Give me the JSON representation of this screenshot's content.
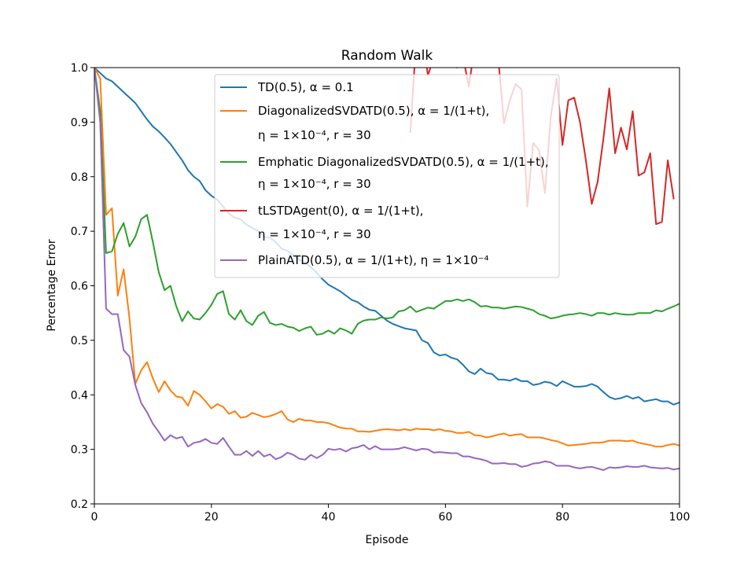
{
  "chart_data": {
    "type": "line",
    "title": "Random Walk",
    "xlabel": "Episode",
    "ylabel": "Percentage Error",
    "xlim": [
      0,
      100
    ],
    "ylim": [
      0.2,
      1.0
    ],
    "xticks": [
      "0",
      "20",
      "40",
      "60",
      "80",
      "100"
    ],
    "yticks": [
      "0.2",
      "0.3",
      "0.4",
      "0.5",
      "0.6",
      "0.7",
      "0.8",
      "0.9",
      "1.0"
    ],
    "legend_position": "top-center",
    "grid": false,
    "series": [
      {
        "name": "TD(0.5), α = 0.1",
        "legend_lines": [
          "TD(0.5), α = 0.1"
        ],
        "color": "#1f77b4",
        "values": [
          1.0,
          0.99,
          0.98,
          0.975,
          0.965,
          0.955,
          0.945,
          0.935,
          0.92,
          0.905,
          0.892,
          0.883,
          0.872,
          0.86,
          0.845,
          0.83,
          0.812,
          0.8,
          0.792,
          0.775,
          0.765,
          0.758,
          0.745,
          0.732,
          0.725,
          0.722,
          0.712,
          0.706,
          0.7,
          0.69,
          0.688,
          0.68,
          0.668,
          0.664,
          0.656,
          0.648,
          0.642,
          0.634,
          0.624,
          0.612,
          0.602,
          0.596,
          0.59,
          0.582,
          0.574,
          0.57,
          0.562,
          0.556,
          0.554,
          0.545,
          0.536,
          0.53,
          0.526,
          0.522,
          0.52,
          0.518,
          0.5,
          0.495,
          0.478,
          0.472,
          0.474,
          0.468,
          0.465,
          0.455,
          0.443,
          0.438,
          0.448,
          0.44,
          0.438,
          0.428,
          0.428,
          0.426,
          0.43,
          0.425,
          0.425,
          0.418,
          0.42,
          0.424,
          0.422,
          0.416,
          0.425,
          0.42,
          0.415,
          0.415,
          0.416,
          0.42,
          0.415,
          0.405,
          0.396,
          0.392,
          0.394,
          0.398,
          0.393,
          0.396,
          0.388,
          0.39,
          0.392,
          0.388,
          0.388,
          0.382,
          0.386
        ]
      },
      {
        "name": "DiagonalizedSVDATD(0.5), α = 1/(1+t), η = 1×10⁻⁴, r = 30",
        "legend_lines": [
          "DiagonalizedSVDATD(0.5), α = 1/(1+t),",
          "η = 1×10⁻⁴, r = 30"
        ],
        "color": "#ff7f0e",
        "values": [
          1.0,
          0.98,
          0.73,
          0.742,
          0.582,
          0.63,
          0.54,
          0.42,
          0.445,
          0.46,
          0.43,
          0.405,
          0.425,
          0.408,
          0.397,
          0.395,
          0.38,
          0.407,
          0.4,
          0.388,
          0.375,
          0.383,
          0.378,
          0.365,
          0.37,
          0.358,
          0.36,
          0.367,
          0.363,
          0.359,
          0.361,
          0.365,
          0.37,
          0.355,
          0.35,
          0.356,
          0.353,
          0.353,
          0.35,
          0.35,
          0.348,
          0.344,
          0.34,
          0.338,
          0.338,
          0.333,
          0.333,
          0.332,
          0.334,
          0.336,
          0.337,
          0.336,
          0.335,
          0.337,
          0.335,
          0.338,
          0.337,
          0.337,
          0.335,
          0.337,
          0.334,
          0.333,
          0.33,
          0.33,
          0.332,
          0.326,
          0.325,
          0.322,
          0.324,
          0.327,
          0.329,
          0.325,
          0.327,
          0.328,
          0.322,
          0.322,
          0.322,
          0.32,
          0.317,
          0.315,
          0.311,
          0.307,
          0.308,
          0.309,
          0.31,
          0.312,
          0.312,
          0.313,
          0.316,
          0.316,
          0.316,
          0.315,
          0.316,
          0.312,
          0.31,
          0.308,
          0.305,
          0.305,
          0.308,
          0.31,
          0.307
        ]
      },
      {
        "name": "Emphatic DiagonalizedSVDATD(0.5), α = 1/(1+t), η = 1×10⁻⁴, r = 30",
        "legend_lines": [
          "Emphatic DiagonalizedSVDATD(0.5), α = 1/(1+t),",
          "η = 1×10⁻⁴, r = 30"
        ],
        "color": "#2ca02c",
        "values": [
          1.0,
          0.92,
          0.66,
          0.663,
          0.695,
          0.715,
          0.672,
          0.69,
          0.722,
          0.73,
          0.68,
          0.625,
          0.592,
          0.6,
          0.562,
          0.535,
          0.553,
          0.54,
          0.538,
          0.55,
          0.565,
          0.585,
          0.59,
          0.548,
          0.538,
          0.555,
          0.535,
          0.528,
          0.545,
          0.552,
          0.532,
          0.528,
          0.53,
          0.525,
          0.523,
          0.517,
          0.522,
          0.525,
          0.51,
          0.512,
          0.518,
          0.512,
          0.522,
          0.518,
          0.512,
          0.53,
          0.536,
          0.538,
          0.538,
          0.542,
          0.54,
          0.542,
          0.553,
          0.555,
          0.562,
          0.552,
          0.556,
          0.56,
          0.558,
          0.565,
          0.572,
          0.572,
          0.575,
          0.572,
          0.575,
          0.57,
          0.562,
          0.563,
          0.56,
          0.56,
          0.558,
          0.56,
          0.562,
          0.561,
          0.558,
          0.555,
          0.548,
          0.545,
          0.54,
          0.542,
          0.545,
          0.547,
          0.548,
          0.55,
          0.548,
          0.545,
          0.55,
          0.55,
          0.547,
          0.55,
          0.548,
          0.547,
          0.547,
          0.55,
          0.55,
          0.55,
          0.555,
          0.553,
          0.558,
          0.562,
          0.567
        ]
      },
      {
        "name": "tLSTDAgent(0), α = 1/(1+t), η = 1×10⁻⁴, r = 30",
        "legend_lines": [
          "tLSTDAgent(0), α = 1/(1+t),",
          "η = 1×10⁻⁴, r = 30"
        ],
        "color": "#d62728",
        "values": [
          null,
          null,
          null,
          null,
          null,
          null,
          null,
          null,
          null,
          null,
          null,
          null,
          null,
          null,
          null,
          null,
          null,
          null,
          null,
          null,
          null,
          null,
          null,
          null,
          null,
          null,
          null,
          null,
          null,
          null,
          null,
          null,
          null,
          null,
          null,
          null,
          null,
          null,
          null,
          null,
          null,
          null,
          null,
          null,
          null,
          null,
          null,
          null,
          null,
          null,
          null,
          null,
          null,
          null,
          0.882,
          1.05,
          1.07,
          0.985,
          1.02,
          1.06,
          1.08,
          1.01,
          1.0,
          1.02,
          0.965,
          1.04,
          1.05,
          1.06,
          1.03,
          1.02,
          0.898,
          0.94,
          0.97,
          0.96,
          0.745,
          0.862,
          0.848,
          0.77,
          0.91,
          0.98,
          0.858,
          0.94,
          0.945,
          0.9,
          0.83,
          0.75,
          0.79,
          0.87,
          0.962,
          0.843,
          0.89,
          0.85,
          0.92,
          0.802,
          0.808,
          0.843,
          0.713,
          0.717,
          0.83,
          0.76
        ]
      },
      {
        "name": "PlainATD(0.5), α = 1/(1+t), η = 1×10⁻⁴",
        "legend_lines": [
          "PlainATD(0.5), α = 1/(1+t), η = 1×10⁻⁴"
        ],
        "color": "#9467bd",
        "values": [
          1.0,
          0.9,
          0.558,
          0.548,
          0.548,
          0.482,
          0.47,
          0.418,
          0.385,
          0.368,
          0.347,
          0.332,
          0.316,
          0.326,
          0.32,
          0.323,
          0.305,
          0.312,
          0.314,
          0.319,
          0.312,
          0.31,
          0.321,
          0.305,
          0.29,
          0.29,
          0.297,
          0.288,
          0.297,
          0.287,
          0.291,
          0.282,
          0.286,
          0.294,
          0.29,
          0.283,
          0.281,
          0.29,
          0.284,
          0.29,
          0.301,
          0.299,
          0.301,
          0.296,
          0.302,
          0.304,
          0.308,
          0.3,
          0.306,
          0.3,
          0.3,
          0.3,
          0.301,
          0.304,
          0.301,
          0.298,
          0.301,
          0.3,
          0.294,
          0.295,
          0.294,
          0.293,
          0.293,
          0.287,
          0.287,
          0.284,
          0.282,
          0.279,
          0.274,
          0.274,
          0.275,
          0.273,
          0.273,
          0.268,
          0.27,
          0.274,
          0.275,
          0.278,
          0.276,
          0.27,
          0.27,
          0.27,
          0.267,
          0.265,
          0.267,
          0.268,
          0.265,
          0.262,
          0.267,
          0.266,
          0.267,
          0.269,
          0.268,
          0.268,
          0.27,
          0.267,
          0.266,
          0.265,
          0.266,
          0.263,
          0.265
        ]
      }
    ]
  }
}
